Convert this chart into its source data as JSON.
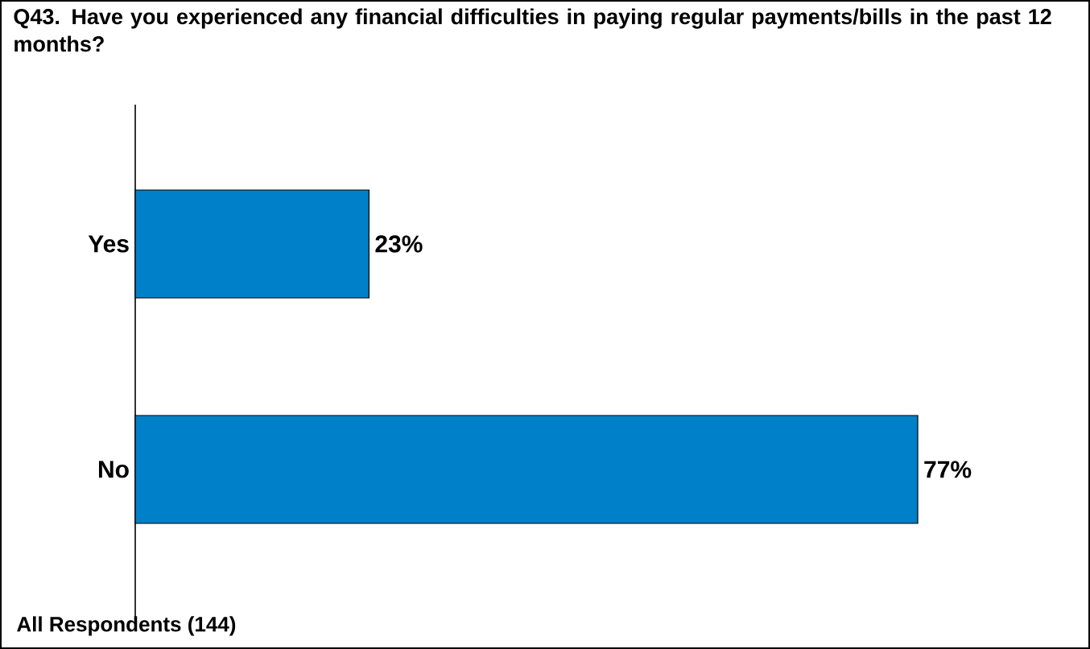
{
  "chart_data": {
    "type": "bar",
    "orientation": "horizontal",
    "title": "Q43. Have you experienced any financial difficulties in paying regular payments/bills in the past 12 months?",
    "categories": [
      "Yes",
      "No"
    ],
    "values": [
      23,
      77
    ],
    "value_labels": [
      "23%",
      "77%"
    ],
    "color": "#0080c8",
    "annotations": [
      "All Respondents (144)"
    ]
  }
}
